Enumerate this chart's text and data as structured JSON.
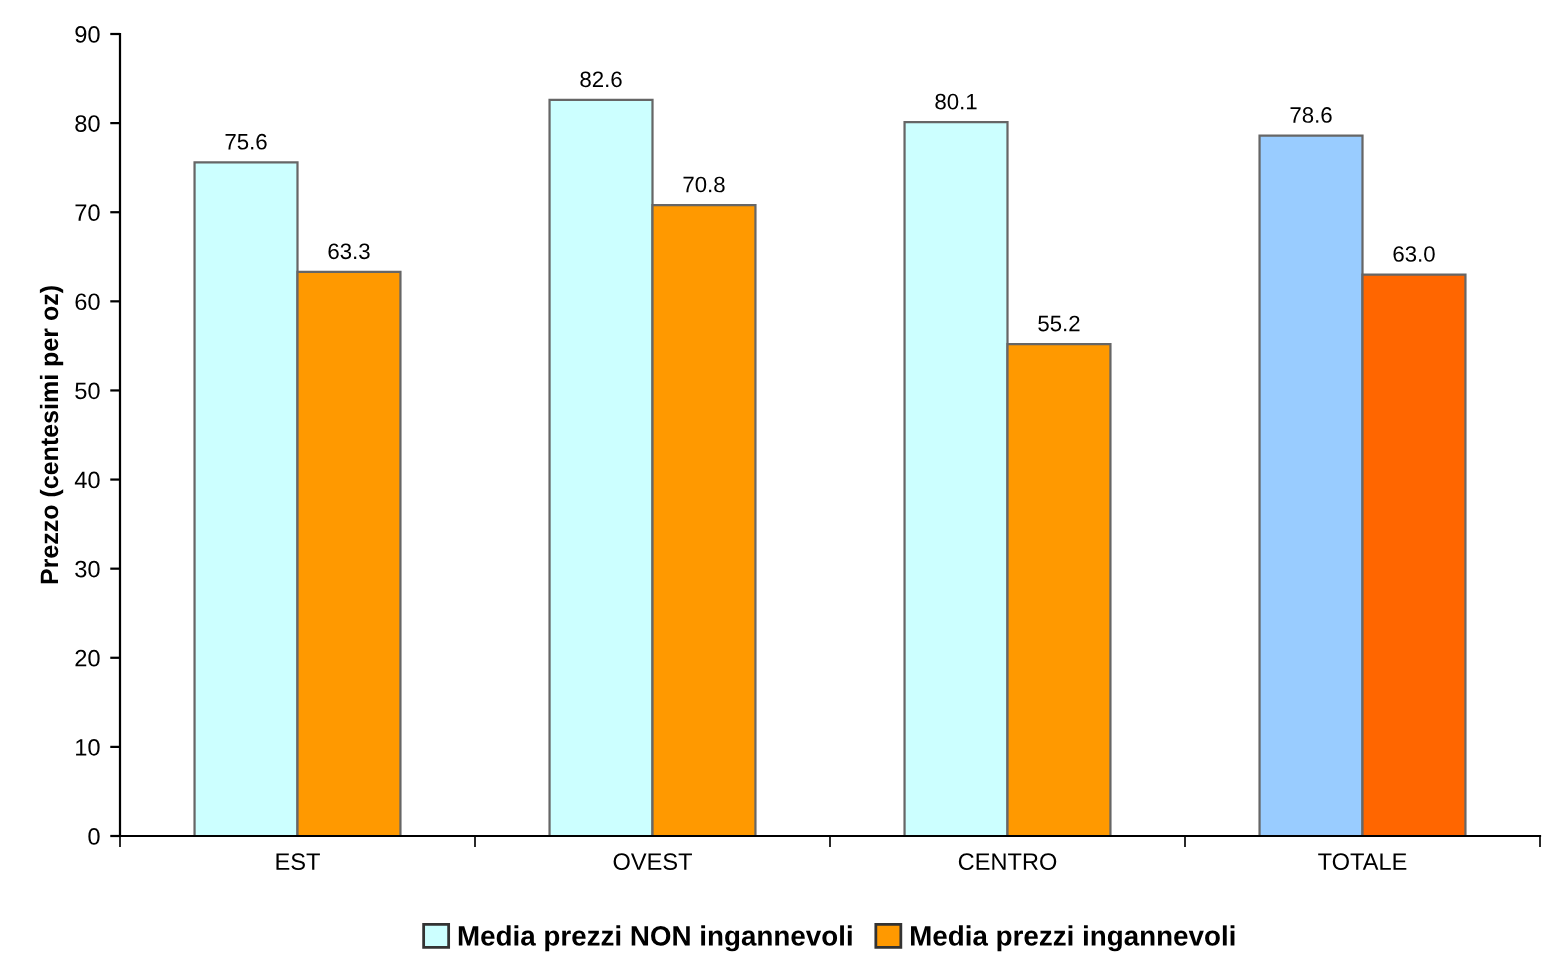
{
  "chart_data": {
    "type": "bar",
    "ylabel": "Prezzo (centesimi per oz)",
    "categories": [
      "EST",
      "OVEST",
      "CENTRO",
      "TOTALE"
    ],
    "series": [
      {
        "name": "Media prezzi NON ingannevoli",
        "color": "#ccffff",
        "colors": [
          "#ccffff",
          "#ccffff",
          "#ccffff",
          "#99ccff"
        ],
        "values": [
          75.6,
          82.6,
          80.1,
          78.6
        ],
        "value_labels": [
          "75.6",
          "82.6",
          "80.1",
          "78.6"
        ]
      },
      {
        "name": "Media prezzi ingannevoli",
        "color": "#ff9900",
        "colors": [
          "#ff9900",
          "#ff9900",
          "#ff9900",
          "#ff6600"
        ],
        "values": [
          63.3,
          70.8,
          55.2,
          63.0
        ],
        "value_labels": [
          "63.3",
          "70.8",
          "55.2",
          "63.0"
        ]
      }
    ],
    "ylim": [
      0,
      90
    ],
    "yticks": [
      0,
      10,
      20,
      30,
      40,
      50,
      60,
      70,
      80,
      90
    ],
    "grid": false,
    "legend": "bottom"
  }
}
